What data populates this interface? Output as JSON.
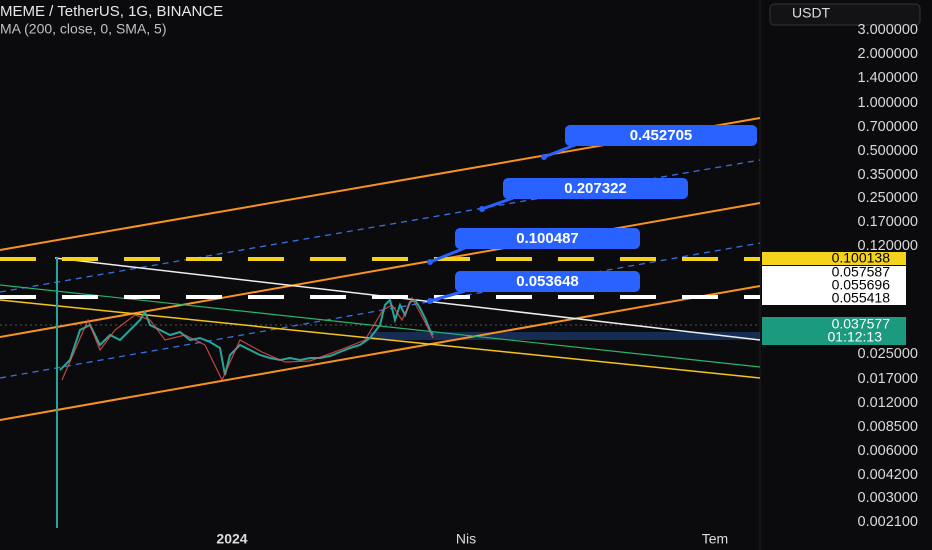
{
  "header": {
    "symbol": "MEME / TetherUS, 1G, BINANCE",
    "indicator": "MA (200, close, 0, SMA, 5)"
  },
  "currency": "USDT",
  "price_axis": [
    "3.000000",
    "2.000000",
    "1.400000",
    "1.000000",
    "0.700000",
    "0.500000",
    "0.350000",
    "0.250000",
    "0.170000",
    "0.120000",
    "0.025000",
    "0.017000",
    "0.012000",
    "0.008500",
    "0.006000",
    "0.004200",
    "0.003000",
    "0.002100"
  ],
  "price_markers": [
    "0.100138",
    "0.057587",
    "0.055696",
    "0.055418"
  ],
  "last_price": {
    "price": "0.037577",
    "countdown": "01:12:13"
  },
  "callouts": [
    "0.452705",
    "0.207322",
    "0.100487",
    "0.053648"
  ],
  "time_axis": [
    "2024",
    "Nis",
    "Tem"
  ]
}
